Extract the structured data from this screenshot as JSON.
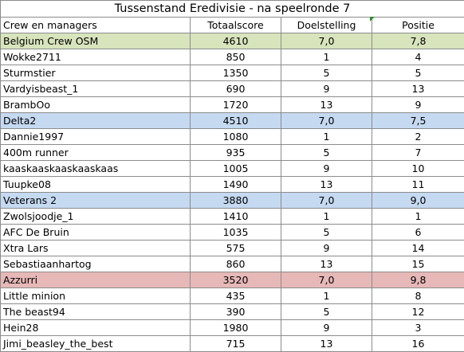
{
  "title": "Tussenstand Eredivisie - na speelronde 7",
  "headers": [
    "Crew en managers",
    "Totaalscore",
    "Doelstelling",
    "Positie"
  ],
  "colors": {
    "green": "#d8e4bc",
    "blue": "#c5d9f1",
    "pink": "#e6b8b7",
    "white": "#ffffff"
  },
  "rows": [
    {
      "cells": [
        "Belgium Crew OSM",
        "4610",
        "7,0",
        "7,8"
      ],
      "fill": "green"
    },
    {
      "cells": [
        "Wokke2711",
        "850",
        "1",
        "4"
      ],
      "fill": "white"
    },
    {
      "cells": [
        "Sturmstier",
        "1350",
        "5",
        "5"
      ],
      "fill": "white"
    },
    {
      "cells": [
        "Vardyisbeast_1",
        "690",
        "9",
        "13"
      ],
      "fill": "white"
    },
    {
      "cells": [
        "BrambOo",
        "1720",
        "13",
        "9"
      ],
      "fill": "white"
    },
    {
      "cells": [
        "Delta2",
        "4510",
        "7,0",
        "7,5"
      ],
      "fill": "blue"
    },
    {
      "cells": [
        "Dannie1997",
        "1080",
        "1",
        "2"
      ],
      "fill": "white"
    },
    {
      "cells": [
        "400m runner",
        "935",
        "5",
        "7"
      ],
      "fill": "white"
    },
    {
      "cells": [
        "kaaskaaskaaskaaskaas",
        "1005",
        "9",
        "10"
      ],
      "fill": "white"
    },
    {
      "cells": [
        "Tuupke08",
        "1490",
        "13",
        "11"
      ],
      "fill": "white"
    },
    {
      "cells": [
        "Veterans 2",
        "3880",
        "7,0",
        "9,0"
      ],
      "fill": "blue"
    },
    {
      "cells": [
        "Zwolsjoodje_1",
        "1410",
        "1",
        "1"
      ],
      "fill": "white"
    },
    {
      "cells": [
        "AFC De Bruin",
        "1035",
        "5",
        "6"
      ],
      "fill": "white"
    },
    {
      "cells": [
        "Xtra Lars",
        "575",
        "9",
        "14"
      ],
      "fill": "white"
    },
    {
      "cells": [
        "Sebastiaanhartog",
        "860",
        "13",
        "15"
      ],
      "fill": "white"
    },
    {
      "cells": [
        "Azzurri",
        "3520",
        "7,0",
        "9,8"
      ],
      "fill": "pink"
    },
    {
      "cells": [
        "Little minion",
        "435",
        "1",
        "8"
      ],
      "fill": "white"
    },
    {
      "cells": [
        "The beast94",
        "390",
        "5",
        "12"
      ],
      "fill": "white"
    },
    {
      "cells": [
        "Hein28",
        "1980",
        "9",
        "3"
      ],
      "fill": "white"
    },
    {
      "cells": [
        "Jimi_beasley_the_best",
        "715",
        "13",
        "16"
      ],
      "fill": "white"
    }
  ]
}
